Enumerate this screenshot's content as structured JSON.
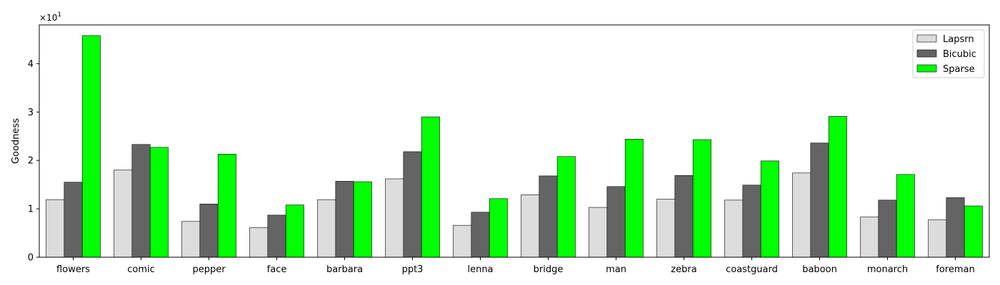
{
  "chart_data": {
    "type": "bar",
    "title": "",
    "xlabel": "",
    "ylabel": "Goodness",
    "scale_label": "×10",
    "scale_exponent": "1",
    "ylim": [
      0,
      4.8
    ],
    "yticks": [
      "0",
      "1",
      "2",
      "3",
      "4"
    ],
    "categories": [
      "flowers",
      "comic",
      "pepper",
      "face",
      "barbara",
      "ppt3",
      "lenna",
      "bridge",
      "man",
      "zebra",
      "coastguard",
      "baboon",
      "monarch",
      "foreman"
    ],
    "series": [
      {
        "name": "Lapsrn",
        "color": "#dcdcdc",
        "values": [
          1.19,
          1.8,
          0.74,
          0.61,
          1.19,
          1.62,
          0.66,
          1.29,
          1.03,
          1.2,
          1.18,
          1.74,
          0.83,
          0.77
        ]
      },
      {
        "name": "Bicubic",
        "color": "#646464",
        "values": [
          1.55,
          2.33,
          1.1,
          0.87,
          1.57,
          2.18,
          0.93,
          1.68,
          1.46,
          1.69,
          1.49,
          2.36,
          1.18,
          1.23
        ]
      },
      {
        "name": "Sparse",
        "color": "#00ff00",
        "values": [
          4.58,
          2.27,
          2.13,
          1.08,
          1.56,
          2.9,
          1.21,
          2.08,
          2.44,
          2.43,
          1.99,
          2.91,
          1.71,
          1.06
        ]
      }
    ],
    "legend_position": "top-right",
    "grid": false
  }
}
